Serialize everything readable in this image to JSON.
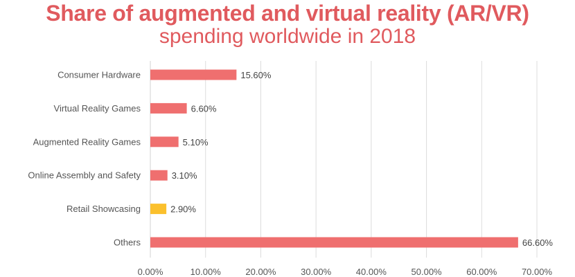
{
  "chart_data": {
    "type": "bar",
    "orientation": "horizontal",
    "title": "Share of augmented and virtual reality (AR/VR)",
    "subtitle": "spending worldwide in 2018",
    "categories": [
      "Consumer Hardware",
      "Virtual Reality Games",
      "Augmented Reality Games",
      "Online Assembly and Safety",
      "Retail Showcasing",
      "Others"
    ],
    "values": [
      15.6,
      6.6,
      5.1,
      3.1,
      2.9,
      66.6
    ],
    "value_labels": [
      "15.60%",
      "6.60%",
      "5.10%",
      "3.10%",
      "2.90%",
      "66.60%"
    ],
    "bar_colors": [
      "#ef6f6f",
      "#ef6f6f",
      "#ef6f6f",
      "#ef6f6f",
      "#fbc02d",
      "#ef6f6f"
    ],
    "xlim": [
      0,
      70
    ],
    "x_ticks": [
      0,
      10,
      20,
      30,
      40,
      50,
      60,
      70
    ],
    "x_tick_labels": [
      "0.00%",
      "10.00%",
      "20.00%",
      "30.00%",
      "40.00%",
      "50.00%",
      "60.00%",
      "70.00%"
    ],
    "xlabel": "",
    "ylabel": "",
    "grid": "vertical",
    "legend": "none"
  }
}
